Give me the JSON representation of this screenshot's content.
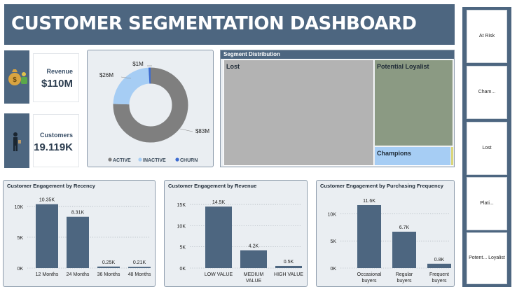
{
  "header": {
    "title": "CUSTOMER SEGMENTATION DASHBOARD"
  },
  "kpis": {
    "revenue": {
      "label": "Revenue",
      "value": "$110M",
      "icon": "money-bag-icon"
    },
    "customers": {
      "label": "Customers",
      "value": "19.119K",
      "icon": "person-icon"
    }
  },
  "slicer": {
    "items": [
      "At Risk",
      "Cham...",
      "Lost",
      "Plati...",
      "Potent... Loyalist"
    ]
  },
  "colors": {
    "navy": "#4d6680",
    "active": "#7f7f7f",
    "inactive": "#a6cdf4",
    "churn": "#3c6bd0",
    "lost": "#b3b3b3",
    "potential_loyalist": "#8b9a83",
    "champions": "#a6cdf4",
    "platinum": "#dad67a",
    "bar": "#4d6680"
  },
  "chart_data": [
    {
      "type": "pie",
      "donut": true,
      "labels": [
        "ACTIVE",
        "INACTIVE",
        "CHURN"
      ],
      "values": [
        83,
        26,
        1
      ],
      "data_labels": [
        "$83M",
        "$26M",
        "$1M"
      ],
      "legend_position": "bottom"
    },
    {
      "type": "treemap",
      "title": "Segment Distribution",
      "labels": [
        "Lost",
        "Potential Loyalist",
        "Champions",
        ""
      ],
      "values": [
        57,
        28,
        14,
        1
      ]
    },
    {
      "type": "bar",
      "title": "Customer Engagement by Recency",
      "categories": [
        "12 Months",
        "24 Months",
        "36 Months",
        "48 Months"
      ],
      "values": [
        10.35,
        8.31,
        0.25,
        0.21
      ],
      "data_labels": [
        "10.35K",
        "8.31K",
        "0.25K",
        "0.21K"
      ],
      "yticks": [
        "0K",
        "5K",
        "10K"
      ],
      "ylim": [
        0,
        11
      ]
    },
    {
      "type": "bar",
      "title": "Customer Engagement by Revenue",
      "categories": [
        "LOW VALUE",
        "MEDIUM VALUE",
        "HIGH VALUE"
      ],
      "values": [
        14.5,
        4.2,
        0.5
      ],
      "data_labels": [
        "14.5K",
        "4.2K",
        "0.5K"
      ],
      "yticks": [
        "0K",
        "5K",
        "10K",
        "15K"
      ],
      "ylim": [
        0,
        16
      ]
    },
    {
      "type": "bar",
      "title": "Customer Engagement by Purchasing Frequency",
      "categories": [
        "Occasional buyers",
        "Regular buyers",
        "Frequent buyers"
      ],
      "values": [
        11.6,
        6.7,
        0.8
      ],
      "data_labels": [
        "11.6K",
        "6.7K",
        "0.8K"
      ],
      "yticks": [
        "0K",
        "5K",
        "10K"
      ],
      "ylim": [
        0,
        12.5
      ]
    }
  ]
}
